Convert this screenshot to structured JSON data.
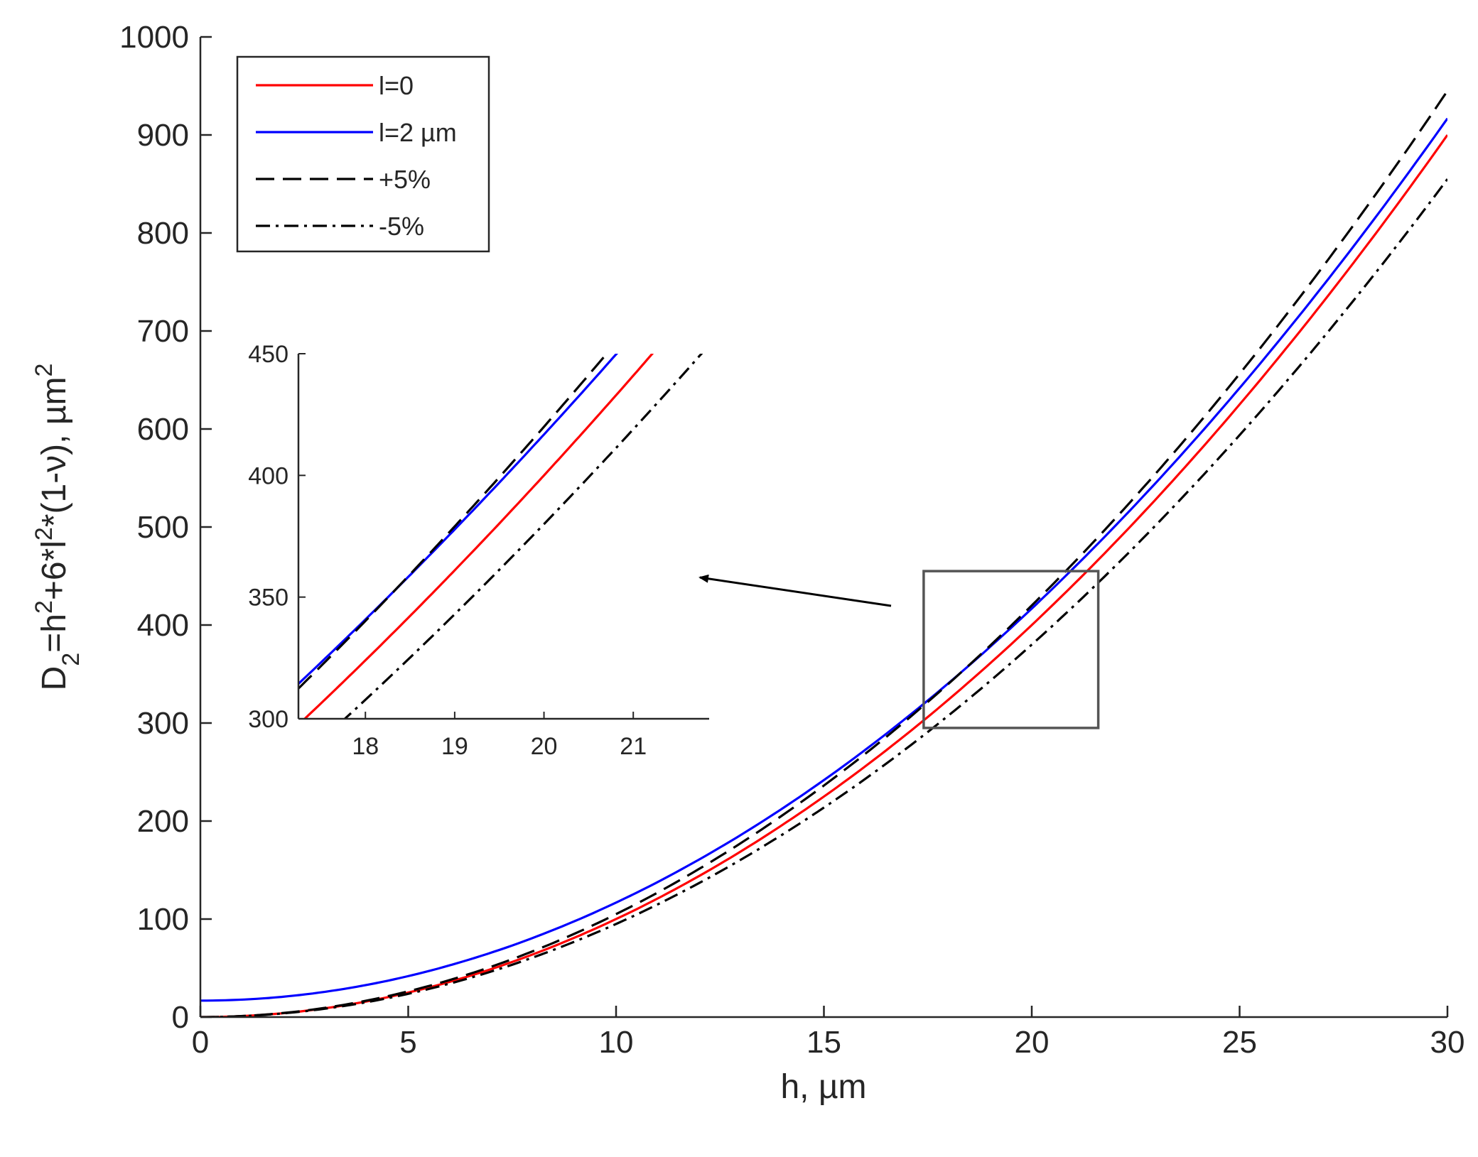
{
  "chart_data": {
    "type": "line",
    "title": "",
    "xlabel": "h, µm",
    "ylabel": {
      "parts": [
        {
          "text": "D",
          "shift": "none"
        },
        {
          "text": "2",
          "shift": "sub"
        },
        {
          "text": "=h",
          "shift": "none"
        },
        {
          "text": "2",
          "shift": "super"
        },
        {
          "text": "+6*l",
          "shift": "none"
        },
        {
          "text": "2",
          "shift": "super"
        },
        {
          "text": "*(1-ν), µm",
          "shift": "none"
        },
        {
          "text": "2",
          "shift": "super"
        }
      ]
    },
    "xlim": [
      0,
      30
    ],
    "ylim": [
      0,
      1000
    ],
    "xticks": [
      0,
      5,
      10,
      15,
      20,
      25,
      30
    ],
    "yticks": [
      0,
      100,
      200,
      300,
      400,
      500,
      600,
      700,
      800,
      900,
      1000
    ],
    "grid": false,
    "legend_position": "top-left",
    "series": [
      {
        "name": "l=0",
        "color": "#ff0000",
        "style": "solid",
        "x": [
          0,
          2,
          4,
          6,
          8,
          10,
          12,
          14,
          16,
          17,
          18,
          19,
          20,
          21,
          22,
          24,
          26,
          28,
          30
        ],
        "y": [
          0,
          4,
          16,
          36,
          64,
          100,
          144,
          196,
          256,
          289,
          324,
          361,
          400,
          441,
          484,
          576,
          676,
          784,
          900
        ]
      },
      {
        "name": "l=2 µm",
        "color": "#0000ff",
        "style": "solid",
        "x": [
          0,
          2,
          4,
          6,
          8,
          10,
          12,
          14,
          16,
          17,
          18,
          19,
          20,
          21,
          22,
          24,
          26,
          28,
          30
        ],
        "y": [
          16.8,
          20.8,
          32.8,
          52.8,
          80.8,
          116.8,
          160.8,
          212.8,
          272.8,
          305.8,
          340.8,
          377.8,
          416.8,
          457.8,
          500.8,
          592.8,
          692.8,
          800.8,
          916.8
        ]
      },
      {
        "name": "+5%",
        "color": "#000000",
        "style": "dashed",
        "x": [
          0,
          2,
          4,
          6,
          8,
          10,
          12,
          14,
          16,
          17,
          18,
          19,
          20,
          21,
          22,
          24,
          26,
          28,
          30
        ],
        "y": [
          0,
          4.2,
          16.8,
          37.8,
          67.2,
          105,
          151.2,
          205.8,
          268.8,
          303.45,
          340.2,
          379.05,
          420,
          463.05,
          508.2,
          604.8,
          709.8,
          823.2,
          945
        ]
      },
      {
        "name": "-5%",
        "color": "#000000",
        "style": "dashdot",
        "x": [
          0,
          2,
          4,
          6,
          8,
          10,
          12,
          14,
          16,
          17,
          18,
          19,
          20,
          21,
          22,
          24,
          26,
          28,
          30
        ],
        "y": [
          0,
          3.8,
          15.2,
          34.2,
          60.8,
          95,
          136.8,
          186.2,
          243.2,
          274.55,
          307.8,
          342.95,
          380,
          418.95,
          459.8,
          547.2,
          642.2,
          744.8,
          855
        ]
      }
    ],
    "zoom_box": {
      "xlim": [
        17.4,
        21.6
      ],
      "ylim": [
        295,
        455
      ]
    },
    "inset": {
      "xlim": [
        17.25,
        21.85
      ],
      "ylim": [
        300,
        450
      ],
      "xticks": [
        18,
        19,
        20,
        21
      ],
      "yticks": [
        300,
        350,
        400,
        450
      ]
    },
    "annotation": "arrow from the zoom box on the main plot to the inset"
  }
}
